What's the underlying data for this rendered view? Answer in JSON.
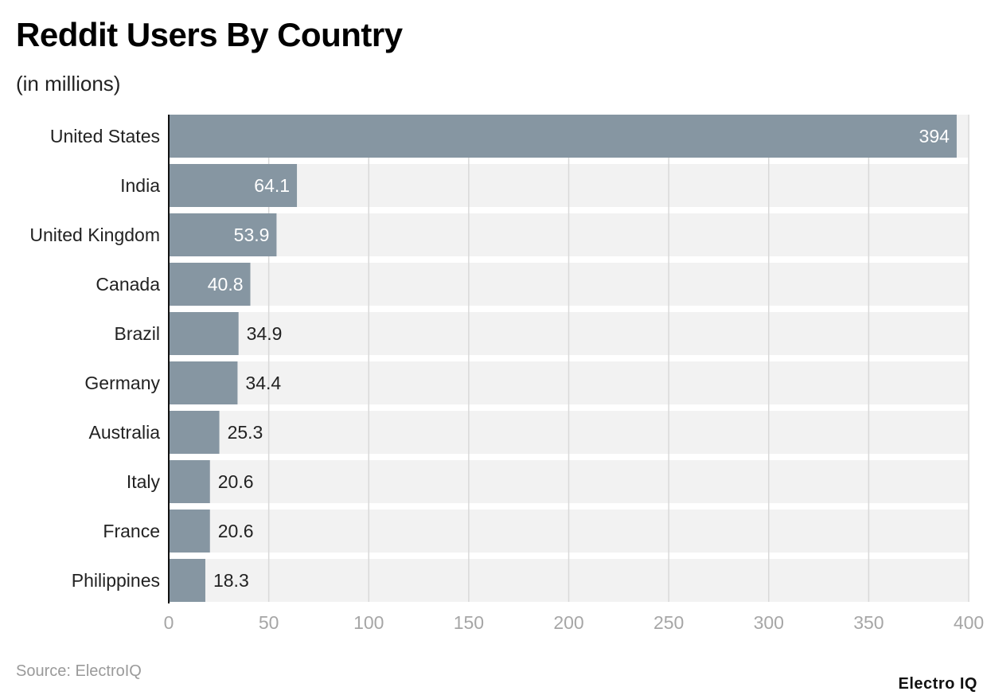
{
  "header": {
    "title": "Reddit Users By Country",
    "subtitle": "(in millions)"
  },
  "footer": {
    "source": "Source: ElectroIQ",
    "brand": "Electro IQ"
  },
  "colors": {
    "bar": "#8696a2",
    "row_bg": "#f2f2f2",
    "grid": "#d9d9d9",
    "axis": "#111111",
    "tick_label": "#a6a6a6",
    "label_inside": "#ffffff",
    "label_outside": "#222222"
  },
  "chart_data": {
    "type": "bar",
    "orientation": "horizontal",
    "categories": [
      "United States",
      "India",
      "United Kingdom",
      "Canada",
      "Brazil",
      "Germany",
      "Australia",
      "Italy",
      "France",
      "Philippines"
    ],
    "values": [
      394,
      64.1,
      53.9,
      40.8,
      34.9,
      34.4,
      25.3,
      20.6,
      20.6,
      18.3
    ],
    "value_labels": [
      "394",
      "64.1",
      "53.9",
      "40.8",
      "34.9",
      "34.4",
      "25.3",
      "20.6",
      "20.6",
      "18.3"
    ],
    "xlim": [
      0,
      400
    ],
    "xticks": [
      0,
      50,
      100,
      150,
      200,
      250,
      300,
      350,
      400
    ],
    "xtick_labels": [
      "0",
      "50",
      "100",
      "150",
      "200",
      "250",
      "300",
      "350",
      "400"
    ],
    "grid": true
  }
}
